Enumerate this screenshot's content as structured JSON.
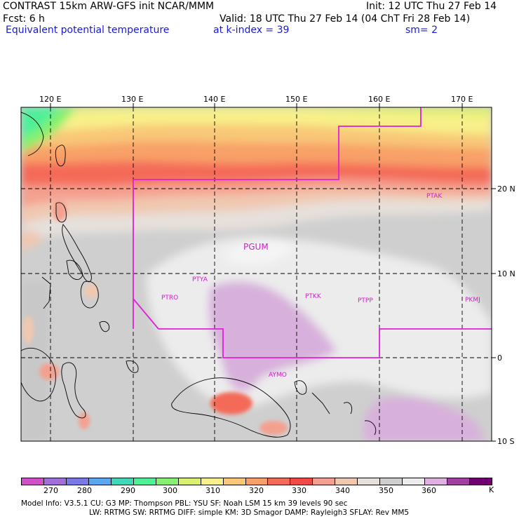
{
  "header": {
    "line1_left": "CONTRAST 15km ARW-GFS init   NCAR/MMM",
    "line1_right": "Init: 12 UTC Thu 27 Feb 14",
    "line2_left": "Fcst:     6 h",
    "line2_right": "Valid: 18 UTC Thu 27 Feb 14 (04 ChT Fri 28 Feb 14)",
    "field_name": "Equivalent potential temperature",
    "level_label": "at k-index =  39",
    "smoothing": "sm= 2",
    "field_color": "#1a1ad6"
  },
  "map": {
    "lon_labels": [
      "120 E",
      "130 E",
      "140 E",
      "150 E",
      "160 E",
      "170 E"
    ],
    "lat_labels": [
      "20 N",
      "10 N",
      "0",
      "10 S"
    ],
    "stations": [
      "PTAK",
      "PGUM",
      "PTYA",
      "PTRO",
      "PTKK",
      "PTPP",
      "PKMJ",
      "AYMO"
    ],
    "boundary_color": "#e020d8"
  },
  "colorbar": {
    "colors": [
      "#d050c8",
      "#a070d8",
      "#7a7ae6",
      "#5aa8f0",
      "#40d8b8",
      "#4ef098",
      "#86f070",
      "#dcf070",
      "#f8f08a",
      "#f8c878",
      "#f8a068",
      "#f46a58",
      "#f04a46",
      "#f4a090",
      "#f0c8b0",
      "#e6e0dc",
      "#cfcfcf",
      "#ececec",
      "#e0b0e0",
      "#a040a0",
      "#700070"
    ],
    "labels": [
      "270",
      "280",
      "290",
      "300",
      "310",
      "320",
      "330",
      "340",
      "350",
      "360"
    ],
    "unit": "K"
  },
  "footer": {
    "line1": "Model Info: V3.5.1    CU: G3      MP: Thompson     PBL: YSU       SF: Noah LSM     15 km    39 levels    90 sec",
    "line2": "LW: RRTMG    SW: RRTMG   DIFF: simple KM: 3D Smagor DAMP: Rayleigh3  SFLAY: Rev MM5"
  }
}
